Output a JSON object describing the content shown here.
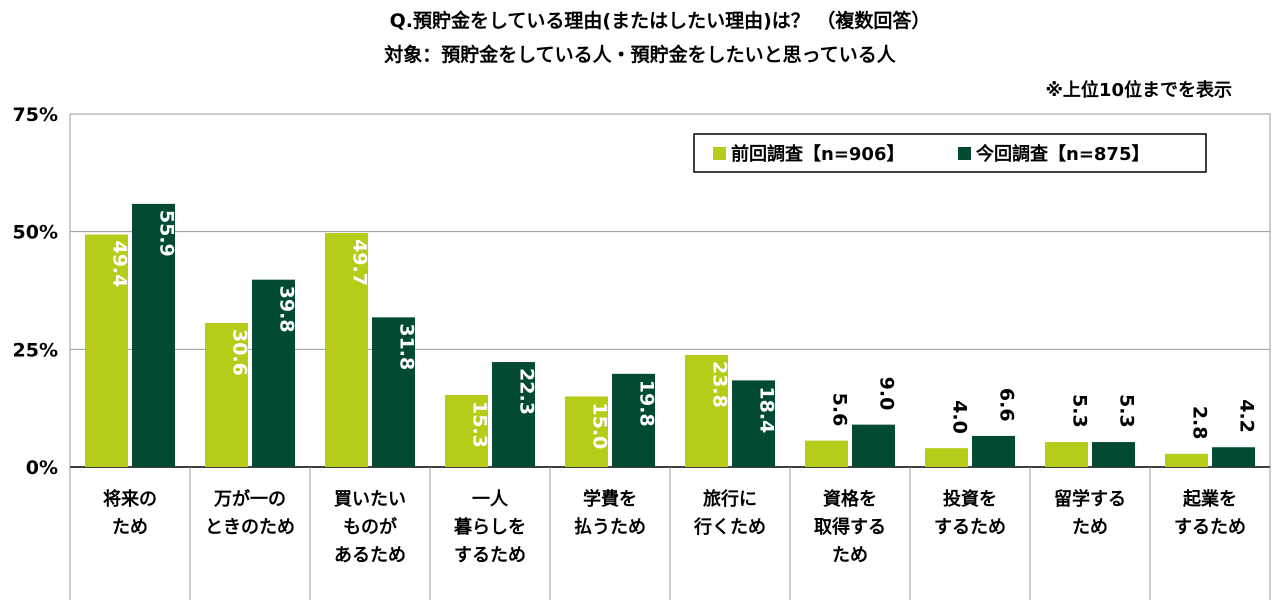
{
  "chart_data": {
    "type": "bar",
    "title": "Q.預貯金をしている理由(またはしたい理由)は？ （複数回答）",
    "subtitle": "対象：預貯金をしている人・預貯金をしたいと思っている人",
    "note": "※上位10位までを表示",
    "ylim": [
      0,
      75
    ],
    "yticks": [
      "0%",
      "25%",
      "50%",
      "75%"
    ],
    "ytick_values": [
      0,
      25,
      50,
      75
    ],
    "categories": [
      [
        "将来の",
        "ため"
      ],
      [
        "万が一の",
        "ときのため"
      ],
      [
        "買いたい",
        "ものが",
        "あるため"
      ],
      [
        "一人",
        "暮らしを",
        "するため"
      ],
      [
        "学費を",
        "払うため"
      ],
      [
        "旅行に",
        "行くため"
      ],
      [
        "資格を",
        "取得する",
        "ため"
      ],
      [
        "投資を",
        "するため"
      ],
      [
        "留学する",
        "ため"
      ],
      [
        "起業を",
        "するため"
      ]
    ],
    "series": [
      {
        "name": "前回調査【n=906】",
        "color": "#b5cc18",
        "values": [
          49.4,
          30.6,
          49.7,
          15.3,
          15.0,
          23.8,
          5.6,
          4.0,
          5.3,
          2.8
        ],
        "labels": [
          "49.4",
          "30.6",
          "49.7",
          "15.3",
          "15.0",
          "23.8",
          "5.6",
          "4.0",
          "5.3",
          "2.8"
        ]
      },
      {
        "name": "今回調査【n=875】",
        "color": "#024a34",
        "values": [
          55.9,
          39.8,
          31.8,
          22.3,
          19.8,
          18.4,
          9.0,
          6.6,
          5.3,
          4.2
        ],
        "labels": [
          "55.9",
          "39.8",
          "31.8",
          "22.3",
          "19.8",
          "18.4",
          "9.0",
          "6.6",
          "5.3",
          "4.2"
        ]
      }
    ],
    "legend": "top-right",
    "grid": true
  }
}
